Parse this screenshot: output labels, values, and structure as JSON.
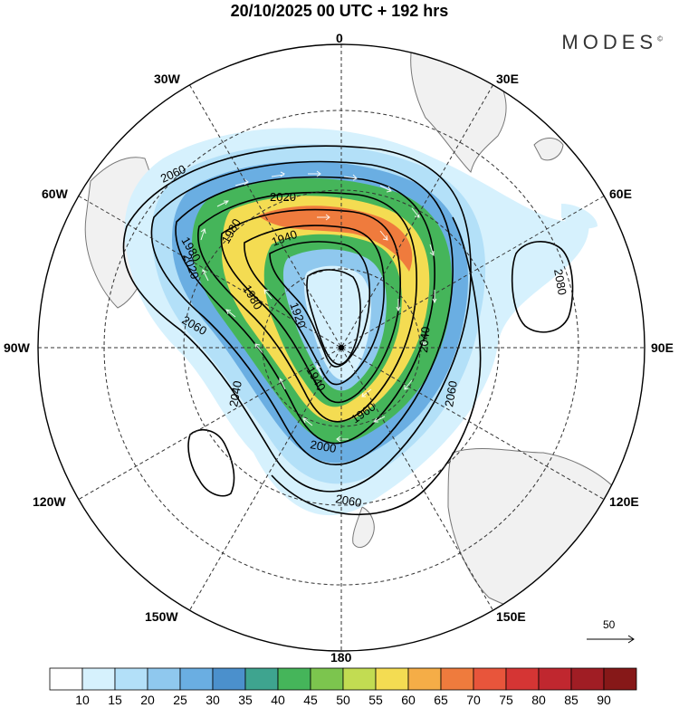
{
  "title": "20/10/2025  00 UTC  + 192 hrs",
  "brand": "MODES",
  "brand_mark": "©",
  "longitude_labels": [
    {
      "id": "0",
      "text": "0"
    },
    {
      "id": "30e",
      "text": "30E"
    },
    {
      "id": "60e",
      "text": "60E"
    },
    {
      "id": "90e",
      "text": "90E"
    },
    {
      "id": "120e",
      "text": "120E"
    },
    {
      "id": "150e",
      "text": "150E"
    },
    {
      "id": "180",
      "text": "180"
    },
    {
      "id": "150w",
      "text": "150W"
    },
    {
      "id": "120w",
      "text": "120W"
    },
    {
      "id": "90w",
      "text": "90W"
    },
    {
      "id": "60w",
      "text": "60W"
    },
    {
      "id": "30w",
      "text": "30W"
    }
  ],
  "contour_labels": [
    "2060",
    "2020",
    "1980",
    "1940",
    "2020",
    "1980",
    "1920",
    "1940",
    "1960",
    "2000",
    "2040",
    "2060",
    "2060",
    "2040",
    "2060",
    "2080",
    "1980"
  ],
  "vector_reference": "50",
  "colorbar": {
    "ticks": [
      "10",
      "15",
      "20",
      "25",
      "30",
      "35",
      "40",
      "45",
      "50",
      "55",
      "60",
      "65",
      "70",
      "75",
      "80",
      "85",
      "90"
    ],
    "colors": [
      "#ffffff",
      "#d6f1fd",
      "#b3e0f8",
      "#8fc8ee",
      "#6aaee2",
      "#4b90cc",
      "#3ea48f",
      "#45b55a",
      "#7cc54e",
      "#c2dc52",
      "#f4dc52",
      "#f5ad47",
      "#ef7b3d",
      "#e8553b",
      "#d53534",
      "#c0272f",
      "#a01d24",
      "#861818"
    ]
  }
}
